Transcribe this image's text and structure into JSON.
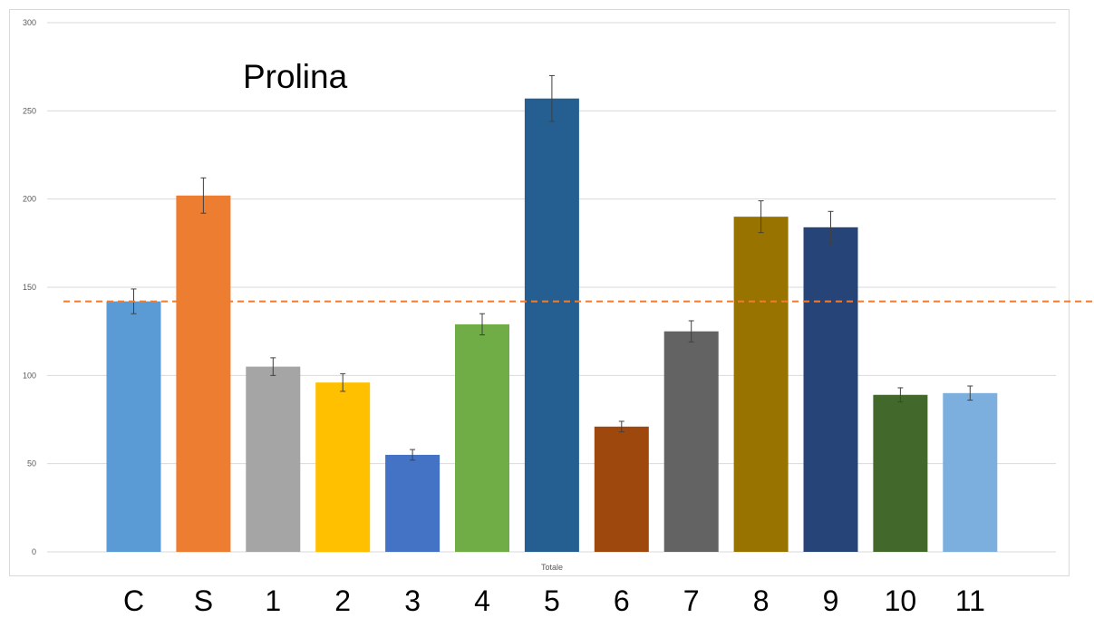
{
  "chart_data": {
    "type": "bar",
    "title": "Prolina",
    "xlabel": "Totale",
    "ylabel": "",
    "ylim": [
      0,
      300
    ],
    "yticks": [
      0,
      50,
      100,
      150,
      200,
      250,
      300
    ],
    "categories": [
      "C",
      "S",
      "1",
      "2",
      "3",
      "4",
      "5",
      "6",
      "7",
      "8",
      "9",
      "10",
      "11"
    ],
    "values": [
      142,
      202,
      105,
      96,
      55,
      129,
      257,
      71,
      125,
      190,
      184,
      89,
      90
    ],
    "errors": [
      7,
      10,
      5,
      5,
      3,
      6,
      13,
      3,
      6,
      9,
      9,
      4,
      4
    ],
    "colors": [
      "#5b9bd5",
      "#ed7d31",
      "#a5a5a5",
      "#ffc000",
      "#4472c4",
      "#70ad47",
      "#255e91",
      "#9e480e",
      "#636363",
      "#997300",
      "#264478",
      "#43682b",
      "#7cafdd"
    ],
    "reference_line": {
      "value": 142,
      "color": "#ed7d31",
      "style": "dashed"
    },
    "grid": true,
    "legend": "none"
  }
}
